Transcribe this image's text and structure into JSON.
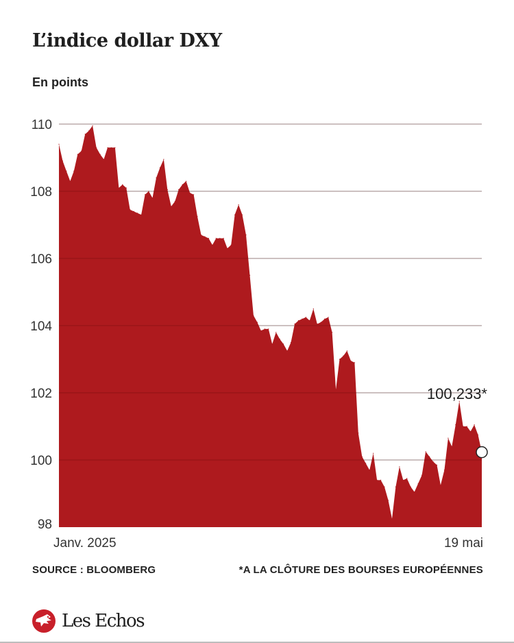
{
  "header": {
    "title": "L’indice dollar DXY",
    "subtitle": "En points"
  },
  "chart_data": {
    "type": "area",
    "title": "L’indice dollar DXY",
    "ylabel": "En points",
    "xlabel": "",
    "ylim": [
      98,
      110
    ],
    "yticks": [
      {
        "value": 110,
        "label": "110"
      },
      {
        "value": 108,
        "label": "108"
      },
      {
        "value": 106,
        "label": "106"
      },
      {
        "value": 104,
        "label": "104"
      },
      {
        "value": 102,
        "label": "102"
      },
      {
        "value": 100,
        "label": "100"
      }
    ],
    "baseline_tick": {
      "value": 98,
      "label": "98"
    },
    "xtick_labels": {
      "start": "Janv. 2025",
      "end": "19 mai"
    },
    "grid": true,
    "fill_color": "#ae1a1e",
    "grid_color": "#d0d0d0",
    "annotation": {
      "label": "100,233*",
      "value": 100.233
    },
    "series": [
      {
        "name": "DXY",
        "values": [
          109.4,
          108.9,
          108.6,
          108.3,
          108.6,
          109.1,
          109.2,
          109.7,
          109.8,
          109.95,
          109.3,
          109.1,
          108.95,
          109.3,
          109.3,
          109.3,
          108.1,
          108.2,
          108.1,
          107.45,
          107.4,
          107.35,
          107.3,
          107.9,
          108.0,
          107.8,
          108.4,
          108.7,
          108.95,
          108.05,
          107.55,
          107.7,
          108.05,
          108.2,
          108.3,
          107.95,
          107.9,
          107.25,
          106.7,
          106.65,
          106.6,
          106.4,
          106.6,
          106.6,
          106.6,
          106.3,
          106.4,
          107.3,
          107.6,
          107.3,
          106.7,
          105.5,
          104.3,
          104.1,
          103.85,
          103.9,
          103.9,
          103.45,
          103.8,
          103.6,
          103.45,
          103.25,
          103.5,
          104.05,
          104.15,
          104.2,
          104.25,
          104.15,
          104.5,
          104.05,
          104.1,
          104.2,
          104.25,
          103.8,
          102.1,
          103.0,
          103.1,
          103.25,
          102.95,
          102.9,
          100.8,
          100.1,
          99.9,
          99.7,
          100.2,
          99.4,
          99.4,
          99.2,
          98.8,
          98.25,
          99.2,
          99.8,
          99.4,
          99.45,
          99.2,
          99.05,
          99.3,
          99.55,
          100.25,
          100.1,
          99.95,
          99.85,
          99.25,
          99.7,
          100.65,
          100.4,
          101.05,
          101.75,
          101.0,
          101.0,
          100.85,
          101.05,
          100.75,
          100.233
        ]
      }
    ]
  },
  "footer": {
    "source": "SOURCE : BLOOMBERG",
    "note": "*A LA CLÔTURE DES BOURSES EUROPÉENNES"
  },
  "brand": {
    "name": "Les Echos",
    "logo_icon": "eagle-emblem-icon",
    "color": "#c8202a"
  }
}
